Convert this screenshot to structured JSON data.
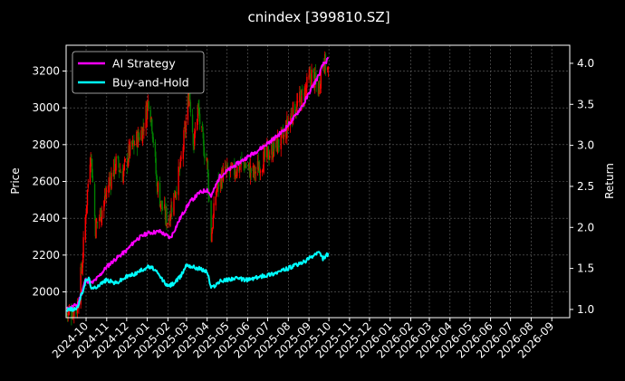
{
  "chart_data": {
    "type": "line",
    "title": "cnindex [399810.SZ]",
    "left_axis": {
      "label": "Price",
      "ylim": [
        1860,
        3340
      ],
      "ticks": [
        2000,
        2200,
        2400,
        2600,
        2800,
        3000,
        3200
      ],
      "tick_labels": [
        "2000",
        "2200",
        "2400",
        "2600",
        "2800",
        "3000",
        "3200"
      ]
    },
    "right_axis": {
      "label": "Return",
      "ylim": [
        0.9,
        4.22
      ],
      "ticks": [
        1.0,
        1.5,
        2.0,
        2.5,
        3.0,
        3.5,
        4.0
      ],
      "tick_labels": [
        "1.0",
        "1.5",
        "2.0",
        "2.5",
        "3.0",
        "3.5",
        "4.0"
      ]
    },
    "x_axis": {
      "xlim": [
        "2024-09-01",
        "2026-09-28"
      ],
      "ticks": [
        "2024-10-01",
        "2024-11-01",
        "2024-12-01",
        "2025-01-01",
        "2025-02-01",
        "2025-03-01",
        "2025-04-01",
        "2025-05-01",
        "2025-06-01",
        "2025-07-01",
        "2025-08-01",
        "2025-09-01",
        "2025-10-01",
        "2025-11-01",
        "2025-12-01",
        "2026-01-01",
        "2026-02-01",
        "2026-03-01",
        "2026-04-01",
        "2026-05-01",
        "2026-06-01",
        "2026-07-01",
        "2026-08-01",
        "2026-09-01"
      ],
      "tick_labels": [
        "2024-10",
        "2024-11",
        "2024-12",
        "2025-01",
        "2025-02",
        "2025-03",
        "2025-04",
        "2025-05",
        "2025-06",
        "2025-07",
        "2025-08",
        "2025-09",
        "2025-10",
        "2025-11",
        "2025-12",
        "2026-01",
        "2026-02",
        "2026-03",
        "2026-04",
        "2026-05",
        "2026-06",
        "2026-07",
        "2026-08",
        "2026-09"
      ]
    },
    "grid": true,
    "legend_position": "top-left",
    "series": [
      {
        "name": "AI Strategy",
        "color": "#ff00ff",
        "axis": "right",
        "points": [
          [
            "2024-09-02",
            1.0
          ],
          [
            "2024-09-10",
            1.03
          ],
          [
            "2024-09-18",
            1.06
          ],
          [
            "2024-09-25",
            1.22
          ],
          [
            "2024-09-30",
            1.36
          ],
          [
            "2024-10-10",
            1.32
          ],
          [
            "2024-10-20",
            1.4
          ],
          [
            "2024-11-01",
            1.52
          ],
          [
            "2024-11-15",
            1.62
          ],
          [
            "2024-12-01",
            1.72
          ],
          [
            "2024-12-15",
            1.85
          ],
          [
            "2025-01-01",
            1.93
          ],
          [
            "2025-01-20",
            1.95
          ],
          [
            "2025-02-05",
            1.87
          ],
          [
            "2025-02-20",
            2.12
          ],
          [
            "2025-03-05",
            2.3
          ],
          [
            "2025-03-20",
            2.42
          ],
          [
            "2025-04-01",
            2.46
          ],
          [
            "2025-04-07",
            2.38
          ],
          [
            "2025-04-20",
            2.62
          ],
          [
            "2025-05-10",
            2.74
          ],
          [
            "2025-06-01",
            2.86
          ],
          [
            "2025-06-20",
            2.96
          ],
          [
            "2025-07-10",
            3.08
          ],
          [
            "2025-07-25",
            3.18
          ],
          [
            "2025-08-10",
            3.34
          ],
          [
            "2025-08-25",
            3.52
          ],
          [
            "2025-09-05",
            3.7
          ],
          [
            "2025-09-15",
            3.84
          ],
          [
            "2025-09-22",
            3.98
          ],
          [
            "2025-09-30",
            4.05
          ]
        ]
      },
      {
        "name": "Buy-and-Hold",
        "color": "#00ffff",
        "axis": "right",
        "points": [
          [
            "2024-09-02",
            1.0
          ],
          [
            "2024-09-10",
            1.0
          ],
          [
            "2024-09-18",
            1.02
          ],
          [
            "2024-09-25",
            1.2
          ],
          [
            "2024-09-30",
            1.34
          ],
          [
            "2024-10-05",
            1.38
          ],
          [
            "2024-10-10",
            1.24
          ],
          [
            "2024-10-20",
            1.3
          ],
          [
            "2024-11-01",
            1.36
          ],
          [
            "2024-11-15",
            1.32
          ],
          [
            "2024-12-01",
            1.4
          ],
          [
            "2024-12-15",
            1.44
          ],
          [
            "2025-01-01",
            1.52
          ],
          [
            "2025-01-10",
            1.5
          ],
          [
            "2025-01-20",
            1.4
          ],
          [
            "2025-02-01",
            1.28
          ],
          [
            "2025-02-10",
            1.32
          ],
          [
            "2025-02-20",
            1.4
          ],
          [
            "2025-03-01",
            1.55
          ],
          [
            "2025-03-10",
            1.52
          ],
          [
            "2025-03-20",
            1.5
          ],
          [
            "2025-04-01",
            1.46
          ],
          [
            "2025-04-07",
            1.26
          ],
          [
            "2025-04-20",
            1.34
          ],
          [
            "2025-05-10",
            1.38
          ],
          [
            "2025-06-01",
            1.36
          ],
          [
            "2025-06-20",
            1.4
          ],
          [
            "2025-07-10",
            1.44
          ],
          [
            "2025-07-25",
            1.48
          ],
          [
            "2025-08-10",
            1.53
          ],
          [
            "2025-08-25",
            1.58
          ],
          [
            "2025-09-05",
            1.64
          ],
          [
            "2025-09-15",
            1.7
          ],
          [
            "2025-09-22",
            1.62
          ],
          [
            "2025-09-30",
            1.68
          ]
        ]
      },
      {
        "name": "",
        "type": "candlestick",
        "axis": "left",
        "up_color": "#ff0000",
        "down_color": "#008000",
        "close_points": [
          [
            "2024-09-02",
            1880
          ],
          [
            "2024-09-18",
            1920
          ],
          [
            "2024-09-25",
            2150
          ],
          [
            "2024-10-01",
            2450
          ],
          [
            "2024-10-08",
            2780
          ],
          [
            "2024-10-15",
            2350
          ],
          [
            "2024-10-25",
            2450
          ],
          [
            "2024-11-05",
            2600
          ],
          [
            "2024-11-15",
            2700
          ],
          [
            "2024-11-25",
            2640
          ],
          [
            "2024-12-05",
            2760
          ],
          [
            "2024-12-15",
            2820
          ],
          [
            "2024-12-25",
            2880
          ],
          [
            "2025-01-03",
            3050
          ],
          [
            "2025-01-08",
            2920
          ],
          [
            "2025-01-15",
            2600
          ],
          [
            "2025-01-22",
            2470
          ],
          [
            "2025-02-01",
            2380
          ],
          [
            "2025-02-10",
            2520
          ],
          [
            "2025-02-20",
            2680
          ],
          [
            "2025-03-01",
            2950
          ],
          [
            "2025-03-05",
            3100
          ],
          [
            "2025-03-12",
            2800
          ],
          [
            "2025-03-18",
            3000
          ],
          [
            "2025-03-25",
            2820
          ],
          [
            "2025-04-01",
            2700
          ],
          [
            "2025-04-07",
            2300
          ],
          [
            "2025-04-15",
            2560
          ],
          [
            "2025-04-25",
            2640
          ],
          [
            "2025-05-10",
            2650
          ],
          [
            "2025-05-25",
            2700
          ],
          [
            "2025-06-10",
            2640
          ],
          [
            "2025-06-25",
            2720
          ],
          [
            "2025-07-10",
            2780
          ],
          [
            "2025-07-25",
            2840
          ],
          [
            "2025-08-05",
            2960
          ],
          [
            "2025-08-15",
            3020
          ],
          [
            "2025-08-25",
            3080
          ],
          [
            "2025-09-05",
            3180
          ],
          [
            "2025-09-15",
            3100
          ],
          [
            "2025-09-22",
            3260
          ],
          [
            "2025-09-30",
            3200
          ]
        ]
      }
    ]
  }
}
